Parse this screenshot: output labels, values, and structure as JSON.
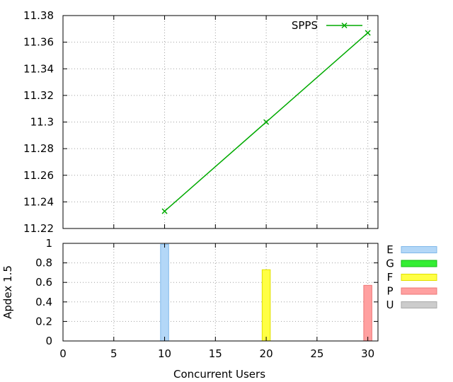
{
  "chart_data": [
    {
      "type": "line",
      "title": "",
      "xlabel": "",
      "ylabel": "",
      "xlim": [
        0,
        31
      ],
      "ylim": [
        11.22,
        11.38
      ],
      "yticks": [
        "11.22",
        "11.24",
        "11.26",
        "11.28",
        "11.3",
        "11.32",
        "11.34",
        "11.36",
        "11.38"
      ],
      "grid": true,
      "legend": "top-right",
      "series": [
        {
          "name": "SPPS",
          "color": "#00aa00",
          "x": [
            10,
            20,
            30
          ],
          "y": [
            11.233,
            11.3,
            11.367
          ]
        }
      ]
    },
    {
      "type": "bar",
      "title": "",
      "xlabel": "Concurrent Users",
      "ylabel": "Apdex 1.5",
      "xlim": [
        0,
        31
      ],
      "ylim": [
        0,
        1
      ],
      "xticks": [
        "0",
        "5",
        "10",
        "15",
        "20",
        "25",
        "30"
      ],
      "yticks": [
        "0",
        "0.2",
        "0.4",
        "0.6",
        "0.8",
        "1"
      ],
      "grid": true,
      "legend": "right",
      "legend_entries": [
        {
          "name": "E",
          "color": "#b3d7f7"
        },
        {
          "name": "G",
          "color": "#33ee33"
        },
        {
          "name": "F",
          "color": "#ffff44"
        },
        {
          "name": "P",
          "color": "#ffa0a0"
        },
        {
          "name": "U",
          "color": "#cccccc"
        }
      ],
      "bars": [
        {
          "x": 10,
          "value": 0.99,
          "rating": "E",
          "color": "#b3d7f7"
        },
        {
          "x": 20,
          "value": 0.73,
          "rating": "F",
          "color": "#ffff44"
        },
        {
          "x": 30,
          "value": 0.57,
          "rating": "P",
          "color": "#ffa0a0"
        }
      ]
    }
  ]
}
